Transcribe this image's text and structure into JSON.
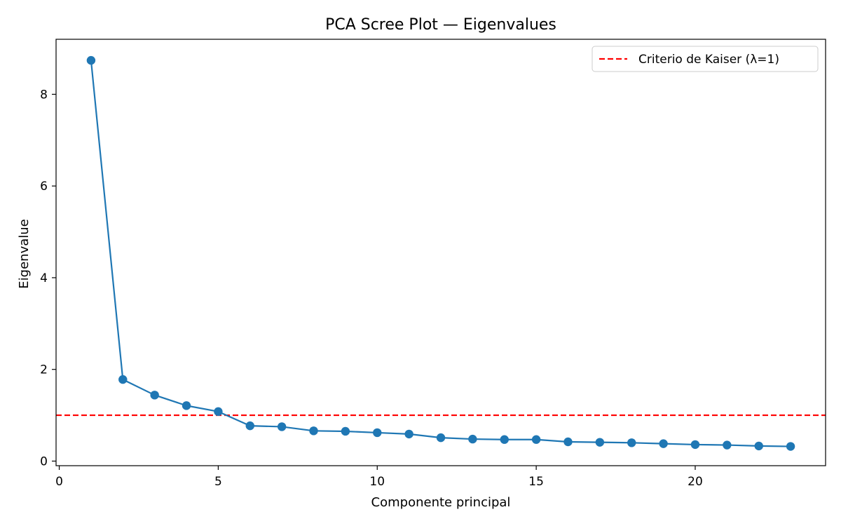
{
  "chart_data": {
    "type": "line",
    "title": "PCA Scree Plot — Eigenvalues",
    "xlabel": "Componente principal",
    "ylabel": "Eigenvalue",
    "xlim": [
      -0.1,
      24.1
    ],
    "ylim": [
      -0.1,
      9.2
    ],
    "x_ticks": [
      0,
      5,
      10,
      15,
      20
    ],
    "y_ticks": [
      0,
      2,
      4,
      6,
      8
    ],
    "grid": false,
    "legend_position": "top-right",
    "series": [
      {
        "color": "#1f77b4",
        "marker": "circle",
        "x": [
          1,
          2,
          3,
          4,
          5,
          6,
          7,
          8,
          9,
          10,
          11,
          12,
          13,
          14,
          15,
          16,
          17,
          18,
          19,
          20,
          21,
          22,
          23
        ],
        "values": [
          8.74,
          1.78,
          1.44,
          1.21,
          1.08,
          0.77,
          0.75,
          0.66,
          0.65,
          0.62,
          0.59,
          0.51,
          0.48,
          0.47,
          0.47,
          0.42,
          0.41,
          0.4,
          0.38,
          0.36,
          0.35,
          0.33,
          0.32
        ]
      }
    ],
    "reference_lines": [
      {
        "orientation": "horizontal",
        "y": 1,
        "name": "Criterio de Kaiser (λ=1)",
        "color": "#ff0000",
        "style": "dashed"
      }
    ]
  }
}
